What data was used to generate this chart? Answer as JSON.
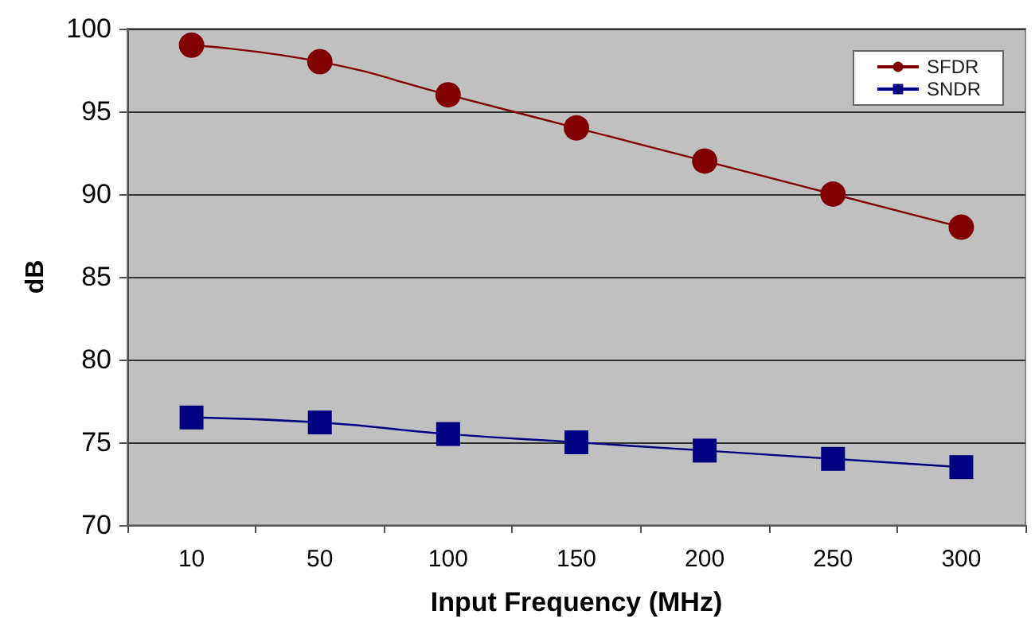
{
  "chart_data": {
    "type": "line",
    "xlabel": "Input Frequency (MHz)",
    "ylabel": "dB",
    "categories": [
      "10",
      "50",
      "100",
      "150",
      "200",
      "250",
      "300"
    ],
    "series": [
      {
        "name": "SFDR",
        "color": "#800000",
        "marker": "circle",
        "values": [
          99,
          98,
          96,
          94,
          92,
          90,
          88
        ]
      },
      {
        "name": "SNDR",
        "color": "#000080",
        "marker": "square",
        "values": [
          76.5,
          76.2,
          75.5,
          75,
          74.5,
          74,
          73.5
        ]
      }
    ],
    "ylim": [
      70,
      100
    ],
    "yticks": [
      70,
      75,
      80,
      85,
      90,
      95,
      100
    ],
    "grid": "y",
    "legend": "top right"
  }
}
